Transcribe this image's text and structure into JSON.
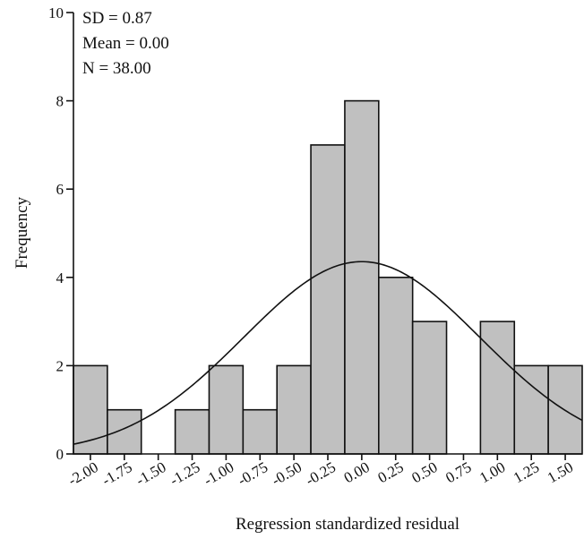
{
  "chart_data": {
    "type": "bar",
    "subtype": "histogram",
    "xlabel": "Regression standardized residual",
    "ylabel": "Frequency",
    "ylim": [
      0,
      10
    ],
    "yticks": [
      0,
      2,
      4,
      6,
      8,
      10
    ],
    "xticks": [
      "-2.00",
      "-1.75",
      "-1.50",
      "-1.25",
      "-1.00",
      "-0.75",
      "-0.50",
      "-0.25",
      "0.00",
      "0.25",
      "0.50",
      "0.75",
      "1.00",
      "1.25",
      "1.50"
    ],
    "bin_width": 0.25,
    "bins": [
      {
        "center": -2.0,
        "count": 2
      },
      {
        "center": -1.75,
        "count": 1
      },
      {
        "center": -1.5,
        "count": 0
      },
      {
        "center": -1.25,
        "count": 1
      },
      {
        "center": -1.0,
        "count": 2
      },
      {
        "center": -0.75,
        "count": 1
      },
      {
        "center": -0.5,
        "count": 2
      },
      {
        "center": -0.25,
        "count": 7
      },
      {
        "center": 0.0,
        "count": 8
      },
      {
        "center": 0.25,
        "count": 4
      },
      {
        "center": 0.5,
        "count": 3
      },
      {
        "center": 0.75,
        "count": 0
      },
      {
        "center": 1.0,
        "count": 3
      },
      {
        "center": 1.25,
        "count": 2
      },
      {
        "center": 1.5,
        "count": 2
      }
    ],
    "normal_curve": {
      "mean": 0.0,
      "sd": 0.87,
      "n": 38
    },
    "stats_lines": [
      "SD = 0.87",
      "Mean = 0.00",
      "N = 38.00"
    ],
    "bar_color": "#c0c0c0",
    "grid": false
  }
}
